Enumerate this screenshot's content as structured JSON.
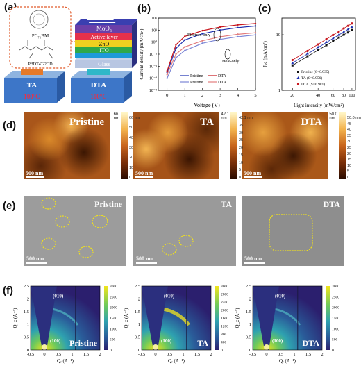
{
  "labels": {
    "a": "(a)",
    "b": "(b)",
    "c": "(c)",
    "d": "(d)",
    "e": "(e)",
    "f": "(f)"
  },
  "panel_a": {
    "molecule_pcbm": "PC₇₁BM",
    "molecule_polymer": "PBDT4T-2OD",
    "layers": [
      "MoO₃",
      "Active layer",
      "ZnO",
      "ITO",
      "Glass"
    ],
    "device_left": "TA",
    "device_left_temp": "100°C",
    "device_right": "DTA",
    "device_right_temp": "100°C"
  },
  "panel_b": {
    "ylabel": "Current density (mA/cm²)",
    "xlabel": "Voltage (V)",
    "xticks": [
      "0",
      "1",
      "2",
      "3",
      "4",
      "5"
    ],
    "yticks": [
      "10²",
      "10¹",
      "10⁰",
      "10⁻¹",
      "10⁻²",
      "10⁻³",
      "10⁻⁴"
    ],
    "annot_electron": "Electron-only",
    "annot_hole": "Hole-only",
    "legend": [
      "Pristine",
      "DTA",
      "Pristine",
      "DTA"
    ]
  },
  "panel_c": {
    "ylabel": "Jₛc (mA/cm²)",
    "xlabel": "Light intensity (mW/cm²)",
    "yticks": [
      "10",
      "1"
    ],
    "xticks": [
      "20",
      "40",
      "60",
      "80",
      "100"
    ],
    "legend": [
      "Pristine (S=0.935)",
      "TA (S=0.956)",
      "DTA (S=0.981)"
    ]
  },
  "afm": [
    {
      "name": "Pristine",
      "scale": "500 nm",
      "cmax": "66 nm",
      "cticks": [
        "66 nm",
        "50",
        "40",
        "30",
        "20",
        "10",
        "0"
      ]
    },
    {
      "name": "TA",
      "scale": "500 nm",
      "cmax": "42.1 nm",
      "cticks": [
        "42.1 nm",
        "35",
        "30",
        "25",
        "20",
        "15",
        "10",
        "5",
        "0"
      ]
    },
    {
      "name": "DTA",
      "scale": "500 nm",
      "cmax": "50.0 nm",
      "cticks": [
        "50.0 nm",
        "45",
        "40",
        "35",
        "30",
        "25",
        "20",
        "15",
        "10",
        "5",
        "0"
      ]
    }
  ],
  "sem": [
    {
      "name": "Pristine",
      "scale": "500 nm"
    },
    {
      "name": "TA",
      "scale": "500 nm"
    },
    {
      "name": "DTA",
      "scale": "500 nm"
    }
  ],
  "giwaxs": [
    {
      "name": "Pristine",
      "peak_010": "(010)",
      "peak_100": "(100)",
      "cticks": [
        "3000",
        "2500",
        "2000",
        "1500",
        "1000",
        "500",
        "0"
      ]
    },
    {
      "name": "TA",
      "peak_010": "(010)",
      "peak_100": "(100)",
      "cticks": [
        "3000",
        "2800",
        "2400",
        "2000",
        "1600",
        "1200",
        "800",
        "400",
        "0"
      ]
    },
    {
      "name": "DTA",
      "peak_010": "(010)",
      "peak_100": "(100)",
      "cticks": [
        "3000",
        "2500",
        "2000",
        "1500",
        "1000",
        "500",
        "0"
      ]
    }
  ],
  "giwaxs_axes": {
    "xlabel": "Qᵣ (A⁻¹)",
    "ylabel": "Q_z (A⁻¹)",
    "xticks": [
      "-0.5",
      "0",
      "0.5",
      "1",
      "1.5",
      "2"
    ],
    "yticks": [
      "0",
      "0.5",
      "1",
      "1.5",
      "2",
      "2.5"
    ]
  },
  "chart_data": [
    {
      "type": "line",
      "title": "",
      "xlabel": "Voltage (V)",
      "ylabel": "Current density (mA/cm²)",
      "yscale": "log",
      "xlim": [
        -0.5,
        5
      ],
      "ylim": [
        0.0001,
        100
      ],
      "series": [
        {
          "name": "Pristine",
          "group": "Electron-only",
          "color": "#1a2fb0",
          "x": [
            0,
            0.5,
            1,
            2,
            3,
            4,
            5
          ],
          "y": [
            0.003,
            0.3,
            1.5,
            5,
            10,
            16,
            22
          ]
        },
        {
          "name": "DTA",
          "group": "Electron-only",
          "color": "#c8161d",
          "x": [
            0,
            0.5,
            1,
            2,
            3,
            4,
            5
          ],
          "y": [
            0.004,
            0.6,
            3,
            9,
            18,
            27,
            35
          ]
        },
        {
          "name": "Pristine",
          "group": "Hole-only",
          "color": "#7b86d6",
          "x": [
            0,
            0.5,
            1,
            2,
            3,
            4,
            5
          ],
          "y": [
            0.001,
            0.05,
            0.2,
            0.8,
            1.7,
            2.8,
            4
          ]
        },
        {
          "name": "DTA",
          "group": "Hole-only",
          "color": "#e27d7d",
          "x": [
            0,
            0.5,
            1,
            2,
            3,
            4,
            5
          ],
          "y": [
            0.002,
            0.1,
            0.4,
            1.3,
            2.8,
            4.5,
            6
          ]
        }
      ]
    },
    {
      "type": "scatter",
      "title": "",
      "xlabel": "Light intensity (mW/cm²)",
      "ylabel": "Jₛc (mA/cm²)",
      "xscale": "log",
      "yscale": "log",
      "series": [
        {
          "name": "Pristine (S=0.935)",
          "color": "#111111",
          "x": [
            20,
            30,
            40,
            50,
            60,
            70,
            80,
            90,
            100
          ],
          "y": [
            2.8,
            4.1,
            5.3,
            6.5,
            7.7,
            8.9,
            10,
            11,
            12.2
          ]
        },
        {
          "name": "TA (S=0.956)",
          "color": "#1a2fb0",
          "x": [
            20,
            30,
            40,
            50,
            60,
            70,
            80,
            90,
            100
          ],
          "y": [
            3.1,
            4.6,
            6,
            7.4,
            8.7,
            10,
            11.3,
            12.6,
            13.8
          ]
        },
        {
          "name": "DTA (S=0.981)",
          "color": "#c8161d",
          "x": [
            20,
            30,
            40,
            50,
            60,
            70,
            80,
            90,
            100
          ],
          "y": [
            3.5,
            5.1,
            6.7,
            8.3,
            9.9,
            11.4,
            13,
            14.5,
            16
          ]
        }
      ]
    }
  ]
}
